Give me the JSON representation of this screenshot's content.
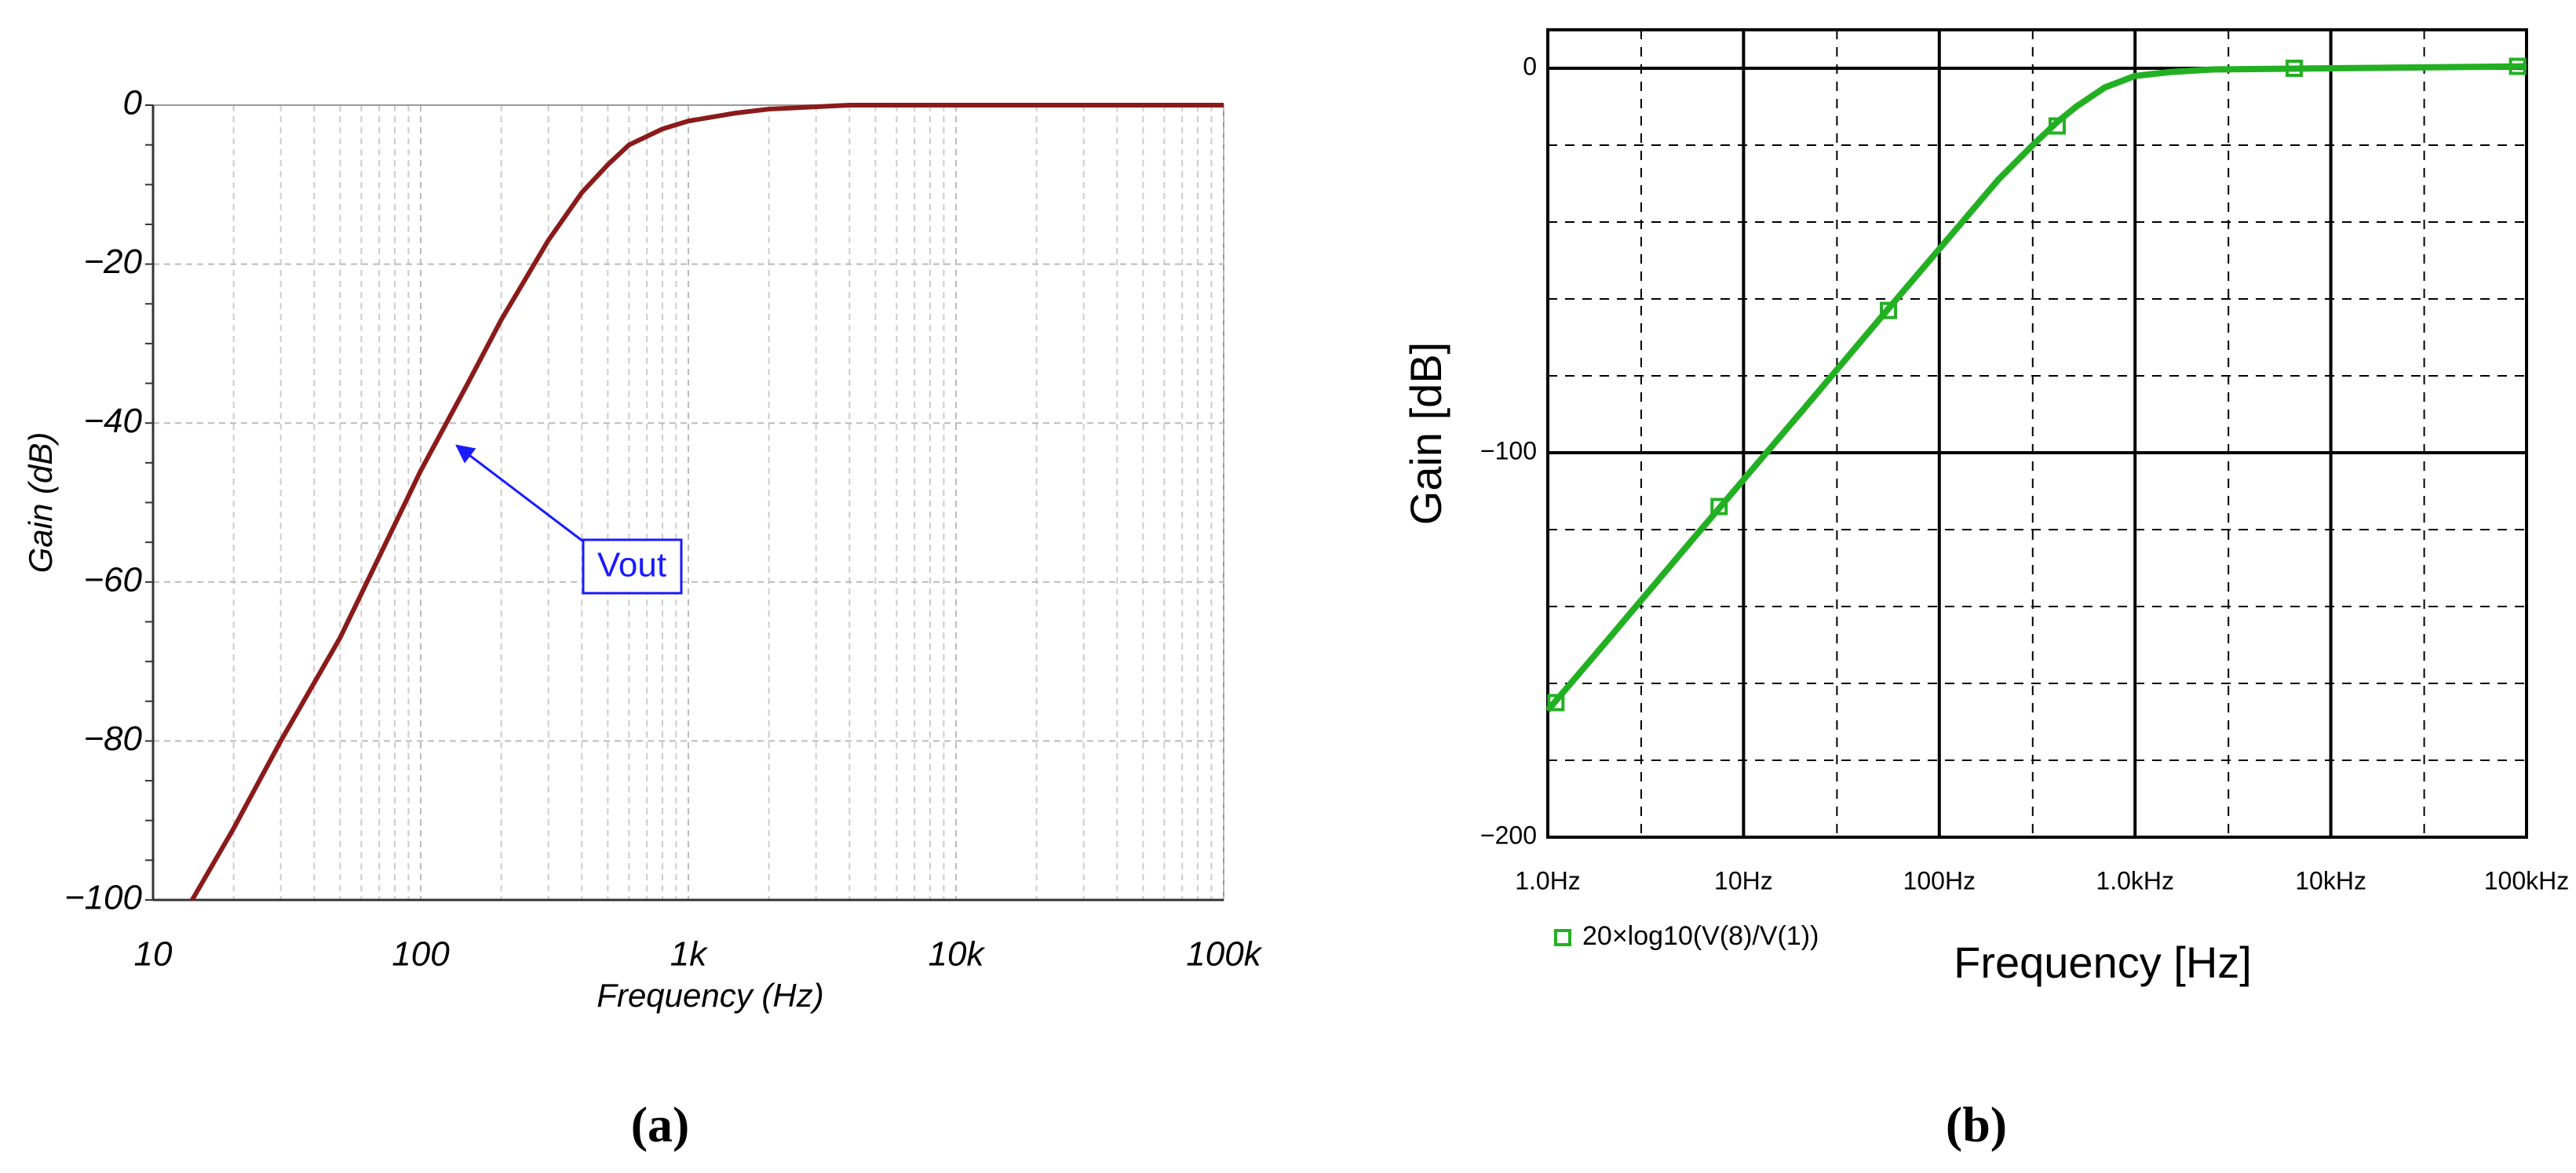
{
  "chart_data": [
    {
      "type": "line",
      "xlabel": "Frequency (Hz)",
      "ylabel": "Gain (dB)",
      "log_x": true,
      "xlim": [
        10,
        100000
      ],
      "xticks": [
        10,
        100,
        {
          "value": 1000,
          "label": "1k"
        },
        {
          "value": 10000,
          "label": "10k"
        },
        {
          "value": 100000,
          "label": "100k"
        }
      ],
      "ylim": [
        -100,
        0
      ],
      "yticks": [
        {
          "value": -100,
          "label": "−100"
        },
        {
          "value": -80,
          "label": "−80"
        },
        {
          "value": -60,
          "label": "−60"
        },
        {
          "value": -40,
          "label": "−40"
        },
        {
          "value": -20,
          "label": "−20"
        },
        0
      ],
      "grid": true,
      "x": [
        14,
        20,
        30,
        50,
        100,
        150,
        200,
        300,
        400,
        500,
        600,
        800,
        1000,
        1500,
        2000,
        4000,
        10000,
        100000
      ],
      "series": [
        {
          "color": "#8b1a1a",
          "values": [
            -100,
            -91,
            -80,
            -67,
            -46,
            -35,
            -27,
            -17,
            -11,
            -7.5,
            -5,
            -3,
            -2,
            -1,
            -0.5,
            0,
            0,
            0
          ]
        }
      ],
      "annotation": "Vout",
      "caption": "(a)"
    },
    {
      "type": "line",
      "xlabel": "Frequency [Hz]",
      "ylabel": "Gain [dB]",
      "log_x": true,
      "xlim": [
        1,
        100000
      ],
      "xticks": [
        {
          "value": 1,
          "label": "1.0Hz"
        },
        {
          "value": 10,
          "label": "10Hz"
        },
        {
          "value": 100,
          "label": "100Hz"
        },
        {
          "value": 1000,
          "label": "1.0kHz"
        },
        {
          "value": 10000,
          "label": "10kHz"
        },
        {
          "value": 100000,
          "label": "100kHz"
        }
      ],
      "xminor": [
        3,
        30,
        300,
        3000,
        30000
      ],
      "ylim": [
        -200,
        10
      ],
      "yticks": [
        {
          "value": -200,
          "label": "−200"
        },
        {
          "value": -100,
          "label": "−100"
        },
        0
      ],
      "yminor": [
        -180,
        -160,
        -140,
        -120,
        -80,
        -60,
        -40,
        -20
      ],
      "grid": true,
      "legend": "bottom-left",
      "x": [
        1,
        2,
        5,
        10,
        20,
        50,
        100,
        200,
        300,
        400,
        500,
        700,
        1000,
        1500,
        2500,
        10000,
        100000
      ],
      "series": [
        {
          "name": "20×log10(V(8)/V(1))",
          "color": "#22b022",
          "values": [
            -167,
            -149,
            -125,
            -107,
            -89,
            -65,
            -47,
            -29,
            -20,
            -14,
            -10,
            -5,
            -2,
            -1,
            -0.3,
            0,
            0.5
          ]
        }
      ],
      "markers": {
        "x": [
          1.1,
          7.5,
          55,
          400,
          6500,
          90000
        ],
        "values": [
          -165,
          -114,
          -63,
          -15,
          0,
          0.5
        ]
      },
      "caption": "(b)"
    }
  ]
}
